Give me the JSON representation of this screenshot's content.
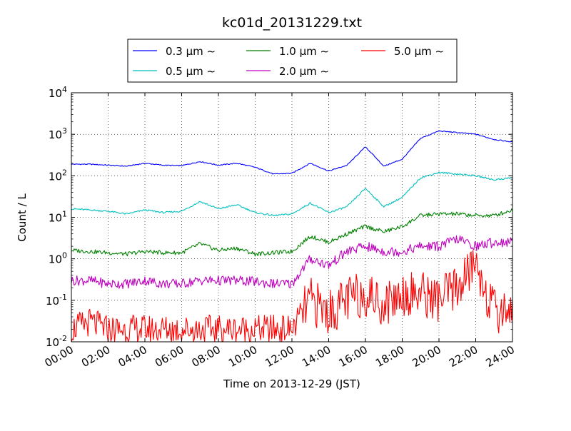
{
  "chart_data": {
    "type": "line",
    "title": "kc01d_20131229.txt",
    "xlabel": "Time on 2013-12-29 (JST)",
    "ylabel": "Count / L",
    "xlim": [
      "2013-12-29 00:00",
      "2013-12-30 00:00"
    ],
    "ylim": [
      0.01,
      10000
    ],
    "yscale": "log",
    "grid": true,
    "legend_position": "top-center",
    "x_tick_labels": [
      "00:00",
      "02:00",
      "04:00",
      "06:00",
      "08:00",
      "10:00",
      "12:00",
      "14:00",
      "16:00",
      "18:00",
      "20:00",
      "22:00",
      "24:00"
    ],
    "y_tick_labels": [
      {
        "base": "10",
        "exp": "-2"
      },
      {
        "base": "10",
        "exp": "-1"
      },
      {
        "base": "10",
        "exp": "0"
      },
      {
        "base": "10",
        "exp": "1"
      },
      {
        "base": "10",
        "exp": "2"
      },
      {
        "base": "10",
        "exp": "3"
      },
      {
        "base": "10",
        "exp": "4"
      }
    ],
    "x": [
      "00:00",
      "01:00",
      "02:00",
      "03:00",
      "04:00",
      "05:00",
      "06:00",
      "07:00",
      "08:00",
      "09:00",
      "10:00",
      "11:00",
      "12:00",
      "13:00",
      "14:00",
      "15:00",
      "16:00",
      "17:00",
      "18:00",
      "19:00",
      "20:00",
      "21:00",
      "22:00",
      "23:00",
      "24:00"
    ],
    "series": [
      {
        "name": "0.3 μm ∼",
        "color": "#0000ff",
        "values": [
          190,
          190,
          180,
          170,
          200,
          180,
          175,
          220,
          180,
          200,
          160,
          110,
          115,
          200,
          130,
          180,
          500,
          170,
          250,
          800,
          1200,
          1100,
          1000,
          750,
          650
        ]
      },
      {
        "name": "0.5 μm ∼",
        "color": "#00bfbf",
        "values": [
          16,
          15,
          14,
          12,
          15,
          13,
          14,
          24,
          16,
          20,
          13,
          11,
          12,
          22,
          13,
          18,
          50,
          18,
          30,
          90,
          120,
          110,
          100,
          80,
          90
        ]
      },
      {
        "name": "1.0 μm ∼",
        "color": "#008000",
        "values": [
          1.6,
          1.5,
          1.4,
          1.3,
          1.5,
          1.4,
          1.4,
          2.3,
          1.6,
          1.8,
          1.3,
          1.4,
          1.5,
          3.5,
          2.5,
          4.0,
          6.0,
          4.5,
          6.0,
          11,
          12,
          12,
          11,
          11,
          15
        ]
      },
      {
        "name": "2.0 μm ∼",
        "color": "#bf00bf",
        "values": [
          0.3,
          0.3,
          0.25,
          0.25,
          0.3,
          0.25,
          0.25,
          0.3,
          0.3,
          0.3,
          0.28,
          0.25,
          0.25,
          1.0,
          0.7,
          1.5,
          2.0,
          1.5,
          1.5,
          2.0,
          2.0,
          3.0,
          2.0,
          2.5,
          2.5
        ]
      },
      {
        "name": "5.0 μm ∼",
        "color": "#ff0000",
        "values": [
          0.02,
          0.03,
          0.02,
          0.02,
          0.02,
          0.02,
          0.02,
          0.02,
          0.02,
          0.02,
          0.02,
          0.02,
          0.02,
          0.1,
          0.05,
          0.1,
          0.15,
          0.08,
          0.15,
          0.15,
          0.1,
          0.2,
          0.8,
          0.05,
          0.07
        ]
      }
    ]
  }
}
